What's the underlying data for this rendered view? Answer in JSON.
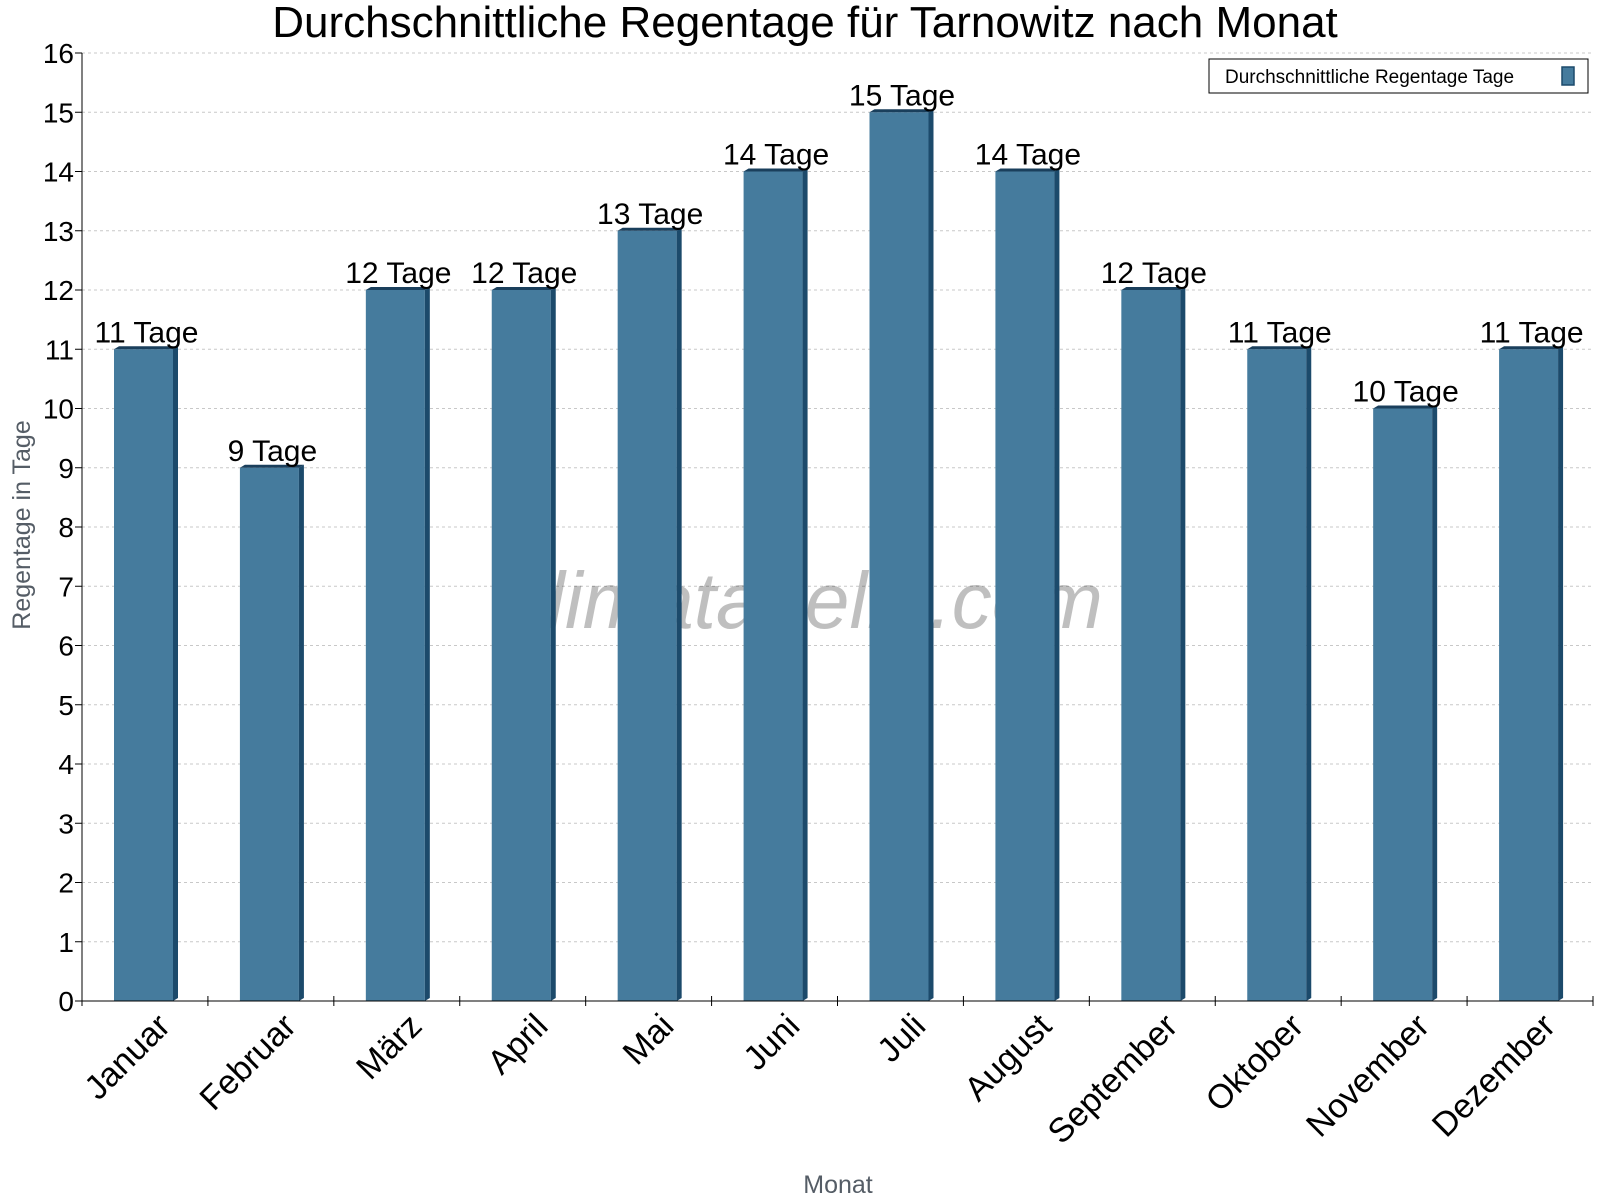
{
  "chart_data": {
    "type": "bar",
    "title": "Durchschnittliche Regentage für Tarnowitz nach Monat",
    "xlabel": "Monat",
    "ylabel": "Regentage in Tage",
    "ylim": [
      0,
      16
    ],
    "yticks": [
      0,
      1,
      2,
      3,
      4,
      5,
      6,
      7,
      8,
      9,
      10,
      11,
      12,
      13,
      14,
      15,
      16
    ],
    "grid": true,
    "legend_position": "top-right",
    "categories": [
      "Januar",
      "Februar",
      "März",
      "April",
      "Mai",
      "Juni",
      "Juli",
      "August",
      "September",
      "Oktober",
      "November",
      "Dezember"
    ],
    "series": [
      {
        "name": "Durchschnittliche Regentage Tage",
        "color": "#457b9d",
        "values": [
          11,
          9,
          12,
          12,
          13,
          14,
          15,
          14,
          12,
          11,
          10,
          11
        ],
        "labels": [
          "11 Tage",
          "9 Tage",
          "12 Tage",
          "12 Tage",
          "13 Tage",
          "14 Tage",
          "15 Tage",
          "14 Tage",
          "12 Tage",
          "11 Tage",
          "10 Tage",
          "11 Tage"
        ]
      }
    ],
    "watermark": "klimatabelle.com"
  }
}
